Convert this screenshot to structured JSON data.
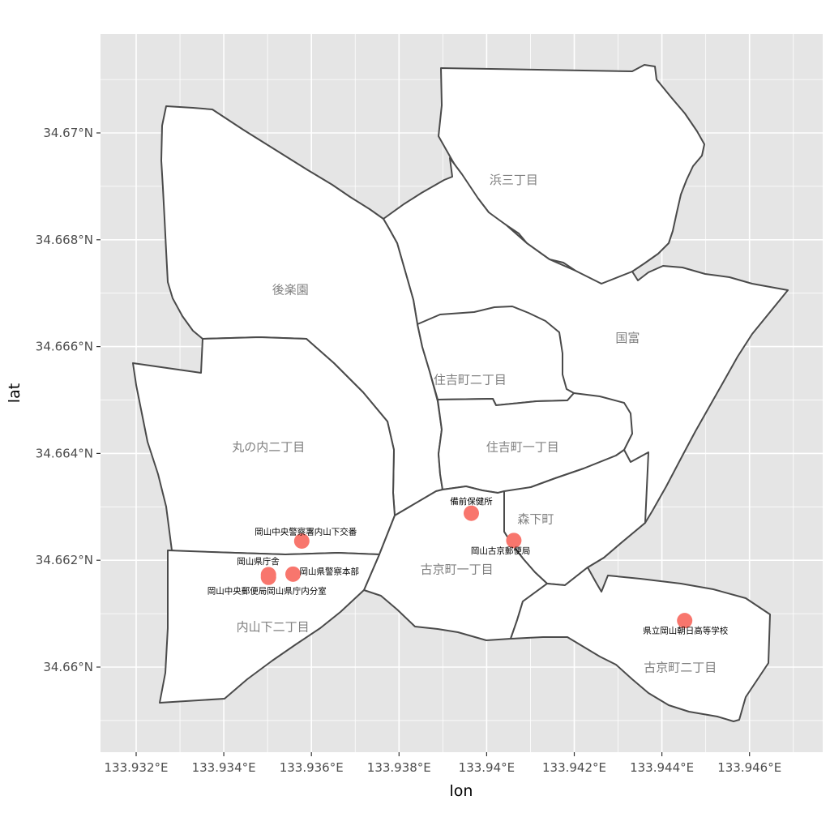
{
  "chart_data": {
    "type": "map",
    "xlabel": "lon",
    "ylabel": "lat",
    "x_ticks": [
      "133.932°E",
      "133.934°E",
      "133.936°E",
      "133.938°E",
      "133.94°E",
      "133.942°E",
      "133.944°E",
      "133.946°E"
    ],
    "y_ticks": [
      "34.66°N",
      "34.662°N",
      "34.664°N",
      "34.666°N",
      "34.668°N",
      "34.67°N"
    ],
    "grid": true,
    "panel_background": "#e5e5e5",
    "point_color": "#f8766d",
    "regions": [
      {
        "name": "浜三丁目",
        "label_lon": 133.94062,
        "label_lat": 34.66912
      },
      {
        "name": "後楽園",
        "label_lon": 133.93552,
        "label_lat": 34.66706
      },
      {
        "name": "国富",
        "label_lon": 133.94322,
        "label_lat": 34.66616
      },
      {
        "name": "住吉町二丁目",
        "label_lon": 133.93962,
        "label_lat": 34.66538
      },
      {
        "name": "丸の内二丁目",
        "label_lon": 133.93502,
        "label_lat": 34.66412
      },
      {
        "name": "住吉町一丁目",
        "label_lon": 133.94082,
        "label_lat": 34.66412
      },
      {
        "name": "森下町",
        "label_lon": 133.94112,
        "label_lat": 34.66277
      },
      {
        "name": "古京町一丁目",
        "label_lon": 133.93932,
        "label_lat": 34.66183
      },
      {
        "name": "内山下二丁目",
        "label_lon": 133.93512,
        "label_lat": 34.66075
      },
      {
        "name": "古京町二丁目",
        "label_lon": 133.94442,
        "label_lat": 34.65999
      }
    ],
    "points": [
      {
        "name": "備前保健所",
        "lon": 133.93965,
        "lat": 34.66288
      },
      {
        "name": "岡山古京郵便局",
        "lon": 133.94062,
        "lat": 34.66237
      },
      {
        "name": "岡山中央警察署内山下交番",
        "lon": 133.93578,
        "lat": 34.66236
      },
      {
        "name": "岡山県庁舎",
        "lon": 133.93502,
        "lat": 34.66173
      },
      {
        "name": "岡山中央郵便局岡山県庁内分室",
        "lon": 133.93502,
        "lat": 34.66168
      },
      {
        "name": "岡山県警察本部",
        "lon": 133.93558,
        "lat": 34.66174
      },
      {
        "name": "県立岡山朝日高等学校",
        "lon": 133.94452,
        "lat": 34.66087
      }
    ]
  }
}
